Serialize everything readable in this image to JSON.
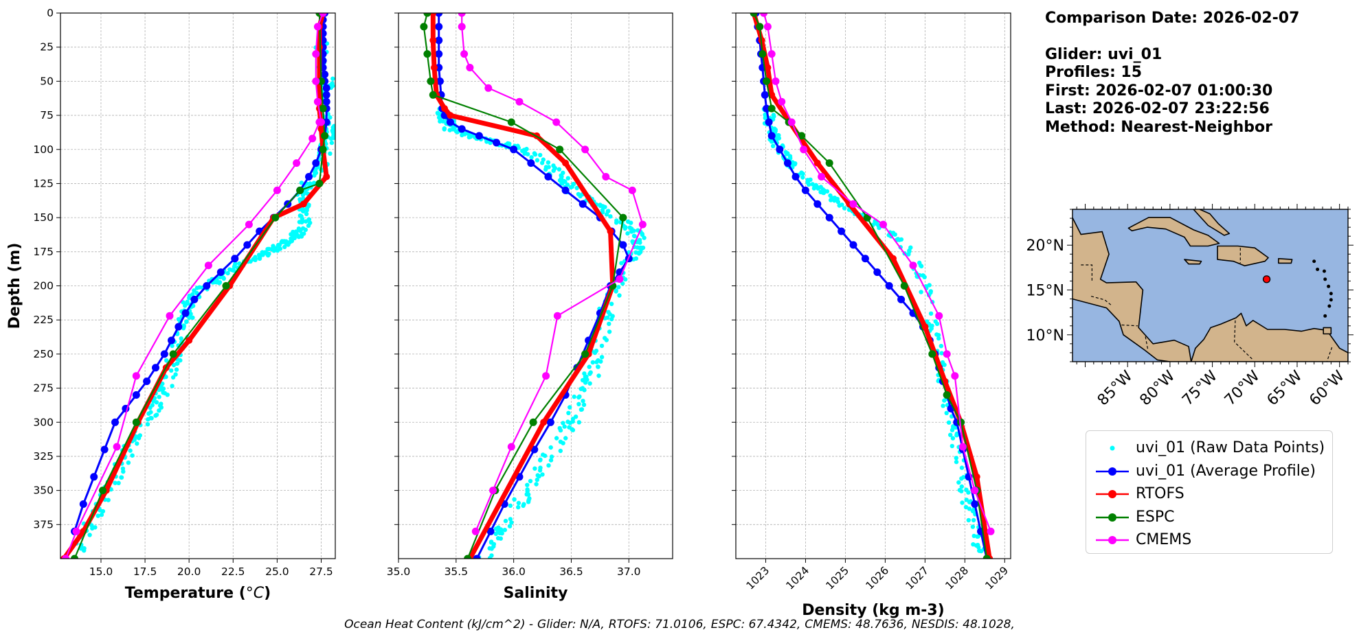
{
  "info": {
    "comparison_date": "Comparison Date: 2026-02-07",
    "glider": "Glider: uvi_01",
    "profiles": "Profiles: 15",
    "first": "First: 2026-02-07 01:00:30",
    "last": "Last: 2026-02-07 23:22:56",
    "method": "Method: Nearest-Neighbor"
  },
  "footer": {
    "prefix": "Ocean Heat Content (kJ/cm^2) -",
    "items": [
      "Glider: N/A,",
      "RTOFS: 71.0106,",
      "ESPC: 67.4342,",
      "CMEMS: 48.7636,",
      "NESDIS: 48.1028,"
    ]
  },
  "colors": {
    "raw": "#00ffff",
    "average": "#0000ff",
    "rtofs": "#ff0000",
    "espc": "#008000",
    "cmems": "#ff00ff"
  },
  "legend": [
    {
      "label": "uvi_01 (Raw Data Points)",
      "series": "raw",
      "marker": "dot",
      "color": "#00ffff"
    },
    {
      "label": "uvi_01 (Average Profile)",
      "series": "average",
      "marker": "line-circle",
      "color": "#0000ff"
    },
    {
      "label": "RTOFS",
      "series": "rtofs",
      "marker": "line-circle",
      "color": "#ff0000"
    },
    {
      "label": "ESPC",
      "series": "espc",
      "marker": "line-circle",
      "color": "#008000"
    },
    {
      "label": "CMEMS",
      "series": "cmems",
      "marker": "line-circle",
      "color": "#ff00ff"
    }
  ],
  "chart_data": [
    {
      "type": "line",
      "ylabel": "Depth (m)",
      "xlabel": "Temperature (°C)",
      "xlabel_prefix": "Temperature (",
      "xlabel_unit": "°C",
      "xlabel_suffix": ")",
      "xlim": [
        12.7,
        28.3
      ],
      "ylim": [
        400,
        0
      ],
      "y_inverted": true,
      "grid": true,
      "xticks": [
        15.0,
        17.5,
        20.0,
        22.5,
        25.0,
        27.5
      ],
      "xtick_labels": [
        "15.0",
        "17.5",
        "20.0",
        "22.5",
        "25.0",
        "27.5"
      ],
      "yticks": [
        0,
        25,
        50,
        75,
        100,
        125,
        150,
        175,
        200,
        225,
        250,
        275,
        300,
        325,
        350,
        375
      ],
      "ytick_labels": [
        "0",
        "25",
        "50",
        "75",
        "100",
        "125",
        "150",
        "175",
        "200",
        "225",
        "250",
        "275",
        "300",
        "325",
        "350",
        "375"
      ],
      "series": [
        {
          "name": "uvi_01 (Average Profile)",
          "key": "average",
          "x": [
            27.7,
            27.6,
            27.6,
            27.6,
            27.6,
            27.6,
            27.6,
            27.6,
            27.6,
            27.7,
            27.7,
            27.8,
            27.8,
            27.8,
            27.8,
            27.8,
            27.7,
            27.5,
            27.2,
            26.8,
            26.3,
            25.6,
            24.8,
            24.0,
            23.3,
            22.6,
            21.8,
            21.0,
            20.3,
            19.8,
            19.4,
            19.0,
            18.6,
            18.1,
            17.6,
            17.0,
            16.4,
            15.8,
            15.2,
            14.6,
            14.0,
            13.5
          ],
          "y": [
            0,
            5,
            10,
            15,
            20,
            25,
            30,
            35,
            40,
            45,
            50,
            55,
            60,
            65,
            70,
            80,
            90,
            100,
            110,
            120,
            130,
            140,
            150,
            160,
            170,
            180,
            190,
            200,
            210,
            220,
            230,
            240,
            250,
            260,
            270,
            280,
            290,
            300,
            320,
            340,
            360,
            380
          ]
        },
        {
          "name": "RTOFS",
          "key": "rtofs",
          "x": [
            27.6,
            27.4,
            27.4,
            27.4,
            27.4,
            27.5,
            27.6,
            27.8,
            26.5,
            24.8,
            22.3,
            20.0,
            18.7,
            17.1,
            15.3,
            14.0,
            12.9
          ],
          "y": [
            0,
            10,
            25,
            50,
            70,
            85,
            100,
            120,
            140,
            150,
            200,
            240,
            260,
            300,
            350,
            380,
            400
          ]
        },
        {
          "name": "ESPC",
          "key": "espc",
          "x": [
            27.4,
            27.5,
            27.6,
            27.7,
            27.6,
            27.4,
            26.3,
            24.9,
            22.1,
            19.1,
            17.0,
            15.1,
            13.5
          ],
          "y": [
            0,
            50,
            70,
            90,
            100,
            125,
            130,
            150,
            200,
            250,
            300,
            350,
            400
          ]
        },
        {
          "name": "CMEMS",
          "key": "cmems",
          "x": [
            27.6,
            27.3,
            27.2,
            27.2,
            27.3,
            27.5,
            27.4,
            27.0,
            26.1,
            25.0,
            23.4,
            21.1,
            18.9,
            17.0,
            15.9,
            13.6,
            13.0
          ],
          "y": [
            0,
            10,
            30,
            50,
            65,
            80,
            80,
            92,
            110,
            130,
            155,
            185,
            222,
            266,
            318,
            380,
            400
          ]
        },
        {
          "name": "uvi_01 (Raw Data Points)",
          "key": "raw",
          "x": [
            27.5,
            27.8,
            27.6,
            27.9,
            27.9,
            27.6,
            26.9,
            26.5,
            26.6,
            26.7,
            26.2,
            26.0,
            25.3,
            24.5,
            23.8,
            22.7,
            21.7,
            20.4,
            19.9,
            19.8,
            19.5,
            19.1,
            18.8,
            18.3,
            17.5,
            16.8,
            16.0,
            15.2,
            14.4,
            13.7
          ],
          "y": [
            20,
            50,
            70,
            85,
            95,
            110,
            120,
            130,
            140,
            150,
            160,
            165,
            170,
            175,
            180,
            185,
            195,
            205,
            215,
            225,
            240,
            255,
            270,
            285,
            300,
            315,
            335,
            355,
            375,
            395
          ],
          "spread": 0.4
        }
      ]
    },
    {
      "type": "line",
      "xlabel": "Salinity",
      "xlim": [
        35.0,
        37.38
      ],
      "ylim": [
        400,
        0
      ],
      "y_inverted": true,
      "grid": true,
      "xticks": [
        35.0,
        35.5,
        36.0,
        36.5,
        37.0
      ],
      "xtick_labels": [
        "35.0",
        "35.5",
        "36.0",
        "36.5",
        "37.0"
      ],
      "yticks": [
        0,
        25,
        50,
        75,
        100,
        125,
        150,
        175,
        200,
        225,
        250,
        275,
        300,
        325,
        350,
        375
      ],
      "series": [
        {
          "name": "uvi_01 (Average Profile)",
          "key": "average",
          "x": [
            35.35,
            35.35,
            35.35,
            35.35,
            35.35,
            35.36,
            35.37,
            35.38,
            35.4,
            35.45,
            35.55,
            35.7,
            35.85,
            36.0,
            36.15,
            36.3,
            36.45,
            36.6,
            36.75,
            36.85,
            36.95,
            37.0,
            36.92,
            36.84,
            36.75,
            36.65,
            36.55,
            36.45,
            36.32,
            36.18,
            36.05,
            35.92,
            35.8,
            35.68
          ],
          "y": [
            0,
            10,
            20,
            30,
            40,
            50,
            60,
            70,
            75,
            80,
            85,
            90,
            95,
            100,
            110,
            120,
            130,
            140,
            150,
            160,
            170,
            180,
            190,
            200,
            220,
            240,
            260,
            280,
            300,
            320,
            340,
            360,
            380,
            400
          ]
        },
        {
          "name": "RTOFS",
          "key": "rtofs",
          "x": [
            35.3,
            35.3,
            35.31,
            35.33,
            35.4,
            35.45,
            36.2,
            36.45,
            36.84,
            36.86,
            36.65,
            36.26,
            35.62
          ],
          "y": [
            0,
            20,
            40,
            60,
            70,
            75,
            90,
            110,
            160,
            200,
            250,
            300,
            400
          ]
        },
        {
          "name": "ESPC",
          "key": "espc",
          "x": [
            35.25,
            35.22,
            35.25,
            35.28,
            35.3,
            35.98,
            36.4,
            36.95,
            36.86,
            36.62,
            36.17,
            35.84,
            35.6
          ],
          "y": [
            0,
            10,
            30,
            50,
            60,
            80,
            100,
            150,
            200,
            250,
            300,
            350,
            400
          ]
        },
        {
          "name": "CMEMS",
          "key": "cmems",
          "x": [
            35.55,
            35.55,
            35.57,
            35.62,
            35.78,
            36.05,
            36.37,
            36.62,
            36.8,
            37.03,
            37.12,
            36.92,
            36.38,
            36.28,
            35.98,
            35.82,
            35.67
          ],
          "y": [
            0,
            10,
            30,
            40,
            55,
            65,
            80,
            100,
            120,
            130,
            155,
            195,
            222,
            266,
            318,
            350,
            380
          ]
        },
        {
          "name": "uvi_01 (Raw Data Points)",
          "key": "raw",
          "x": [
            35.4,
            35.42,
            35.45,
            35.55,
            35.7,
            35.9,
            36.1,
            36.3,
            36.4,
            36.5,
            36.7,
            36.9,
            37.05,
            37.1,
            37.0,
            36.88,
            36.8,
            36.75,
            36.7,
            36.6,
            36.5,
            36.35,
            36.2,
            36.05,
            35.9,
            35.75
          ],
          "y": [
            70,
            78,
            85,
            88,
            92,
            96,
            100,
            110,
            120,
            130,
            140,
            150,
            160,
            170,
            180,
            200,
            220,
            240,
            260,
            280,
            300,
            320,
            340,
            360,
            380,
            400
          ],
          "spread": 0.07
        }
      ]
    },
    {
      "type": "line",
      "xlabel": "Density (kg m-3)",
      "xlim": [
        1022.25,
        1029.15
      ],
      "ylim": [
        400,
        0
      ],
      "y_inverted": true,
      "grid": true,
      "xticks": [
        1023,
        1024,
        1025,
        1026,
        1027,
        1028,
        1029
      ],
      "xtick_labels": [
        "1023",
        "1024",
        "1025",
        "1026",
        "1027",
        "1028",
        "1029"
      ],
      "yticks": [
        0,
        25,
        50,
        75,
        100,
        125,
        150,
        175,
        200,
        225,
        250,
        275,
        300,
        325,
        350,
        375
      ],
      "series": [
        {
          "name": "uvi_01 (Average Profile)",
          "key": "average",
          "x": [
            1022.75,
            1022.8,
            1022.85,
            1022.88,
            1022.92,
            1022.95,
            1022.98,
            1023.02,
            1023.08,
            1023.15,
            1023.35,
            1023.55,
            1023.75,
            1024.0,
            1024.3,
            1024.6,
            1024.9,
            1025.2,
            1025.5,
            1025.8,
            1026.1,
            1026.4,
            1026.7,
            1026.95,
            1027.12,
            1027.25,
            1027.35,
            1027.45,
            1027.55,
            1027.65,
            1027.8,
            1027.95,
            1028.1,
            1028.25,
            1028.4,
            1028.55
          ],
          "y": [
            0,
            10,
            20,
            30,
            40,
            50,
            60,
            70,
            80,
            90,
            100,
            110,
            120,
            130,
            140,
            150,
            160,
            170,
            180,
            190,
            200,
            210,
            220,
            230,
            240,
            250,
            260,
            270,
            280,
            290,
            300,
            320,
            340,
            360,
            380,
            400
          ]
        },
        {
          "name": "RTOFS",
          "key": "rtofs",
          "x": [
            1022.7,
            1022.9,
            1023.05,
            1023.15,
            1023.6,
            1024.3,
            1025.1,
            1026.2,
            1027.0,
            1027.5,
            1027.9,
            1028.3,
            1028.62
          ],
          "y": [
            0,
            20,
            40,
            60,
            80,
            110,
            140,
            180,
            230,
            270,
            300,
            340,
            400
          ]
        },
        {
          "name": "ESPC",
          "key": "espc",
          "x": [
            1022.7,
            1022.85,
            1022.92,
            1023.02,
            1023.15,
            1023.58,
            1023.9,
            1024.6,
            1025.55,
            1026.48,
            1027.18,
            1027.55,
            1027.9,
            1028.3,
            1028.55
          ],
          "y": [
            0,
            10,
            30,
            50,
            70,
            80,
            90,
            110,
            150,
            200,
            250,
            280,
            300,
            350,
            400
          ]
        },
        {
          "name": "CMEMS",
          "key": "cmems",
          "x": [
            1022.95,
            1023.05,
            1023.15,
            1023.25,
            1023.4,
            1023.65,
            1023.95,
            1024.4,
            1025.2,
            1025.95,
            1026.7,
            1027.35,
            1027.55,
            1027.75,
            1027.95,
            1028.25,
            1028.65
          ],
          "y": [
            0,
            10,
            30,
            50,
            65,
            80,
            100,
            120,
            140,
            155,
            185,
            222,
            250,
            266,
            318,
            350,
            380
          ]
        },
        {
          "name": "uvi_01 (Raw Data Points)",
          "key": "raw",
          "x": [
            1023.05,
            1023.1,
            1023.2,
            1023.35,
            1023.6,
            1023.95,
            1024.4,
            1024.9,
            1025.5,
            1026.1,
            1026.6,
            1027.0,
            1027.2,
            1027.4,
            1027.6,
            1027.8,
            1028.0,
            1028.2,
            1028.4
          ],
          "y": [
            70,
            80,
            90,
            100,
            110,
            120,
            130,
            140,
            150,
            160,
            175,
            200,
            230,
            260,
            290,
            320,
            350,
            375,
            395
          ],
          "spread": 0.14
        }
      ]
    },
    {
      "type": "map",
      "xlim": [
        -91.5,
        -59.0
      ],
      "ylim": [
        7.0,
        24.0
      ],
      "xticks": [
        -85,
        -80,
        -75,
        -70,
        -65,
        -60
      ],
      "xtick_labels": [
        "85°W",
        "80°W",
        "75°W",
        "70°W",
        "65°W",
        "60°W"
      ],
      "yticks": [
        10,
        15,
        20
      ],
      "ytick_labels": [
        "10°N",
        "15°N",
        "20°N"
      ],
      "ocean_color": "#97b6e1",
      "land_color": "#d2b48c",
      "glider_position": {
        "lon": -68.6,
        "lat": 16.2
      }
    }
  ]
}
